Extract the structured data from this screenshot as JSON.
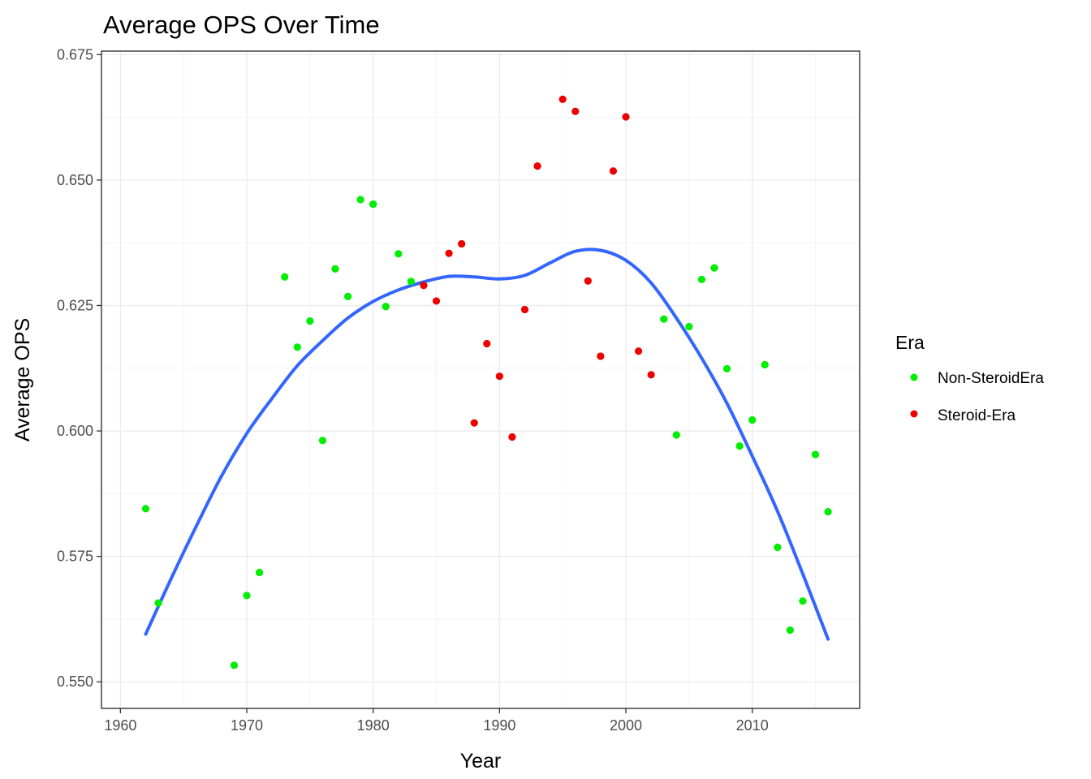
{
  "chart_data": {
    "type": "scatter",
    "title": "Average OPS Over Time",
    "xlabel": "Year",
    "ylabel": "Average OPS",
    "xlim": [
      1958.5,
      2018.5
    ],
    "ylim": [
      0.5447,
      0.6757
    ],
    "x_ticks": [
      1960,
      1970,
      1980,
      1990,
      2000,
      2010
    ],
    "y_ticks": [
      0.55,
      0.575,
      0.6,
      0.625,
      0.65,
      0.675
    ],
    "x_tick_labels": [
      "1960",
      "1970",
      "1980",
      "1990",
      "2000",
      "2010"
    ],
    "y_tick_labels": [
      "0.550",
      "0.575",
      "0.600",
      "0.625",
      "0.650",
      "0.675"
    ],
    "grid": true,
    "legend": {
      "title": "Era",
      "position": "right",
      "entries": [
        {
          "label": "Non-SteroidEra",
          "color": "#00ee00"
        },
        {
          "label": "Steroid-Era",
          "color": "#ee0000"
        }
      ]
    },
    "series": [
      {
        "name": "Non-SteroidEra",
        "color": "#00ee00",
        "points": [
          [
            1962,
            0.5845
          ],
          [
            1963,
            0.5657
          ],
          [
            1969,
            0.5533
          ],
          [
            1970,
            0.5672
          ],
          [
            1971,
            0.5718
          ],
          [
            1973,
            0.6307
          ],
          [
            1974,
            0.6167
          ],
          [
            1975,
            0.6219
          ],
          [
            1976,
            0.5981
          ],
          [
            1977,
            0.6323
          ],
          [
            1978,
            0.6268
          ],
          [
            1979,
            0.6461
          ],
          [
            1980,
            0.6452
          ],
          [
            1981,
            0.6248
          ],
          [
            1982,
            0.6353
          ],
          [
            1983,
            0.6298
          ],
          [
            2003,
            0.6223
          ],
          [
            2004,
            0.5992
          ],
          [
            2005,
            0.6208
          ],
          [
            2006,
            0.6302
          ],
          [
            2007,
            0.6325
          ],
          [
            2008,
            0.6124
          ],
          [
            2009,
            0.597
          ],
          [
            2010,
            0.6022
          ],
          [
            2011,
            0.6132
          ],
          [
            2012,
            0.5768
          ],
          [
            2013,
            0.5603
          ],
          [
            2014,
            0.5661
          ],
          [
            2015,
            0.5953
          ],
          [
            2016,
            0.5839
          ]
        ]
      },
      {
        "name": "Steroid-Era",
        "color": "#ee0000",
        "points": [
          [
            1984,
            0.629
          ],
          [
            1985,
            0.6259
          ],
          [
            1986,
            0.6354
          ],
          [
            1987,
            0.6373
          ],
          [
            1988,
            0.6016
          ],
          [
            1989,
            0.6174
          ],
          [
            1990,
            0.6109
          ],
          [
            1991,
            0.5988
          ],
          [
            1992,
            0.6242
          ],
          [
            1993,
            0.6528
          ],
          [
            1995,
            0.6661
          ],
          [
            1996,
            0.6637
          ],
          [
            1997,
            0.6299
          ],
          [
            1998,
            0.6149
          ],
          [
            1999,
            0.6518
          ],
          [
            2000,
            0.6626
          ],
          [
            2001,
            0.6159
          ],
          [
            2002,
            0.6112
          ]
        ]
      }
    ],
    "smooth_line": {
      "color": "#3366ff",
      "points": [
        [
          1962,
          0.5595
        ],
        [
          1964,
          0.5705
        ],
        [
          1966,
          0.581
        ],
        [
          1968,
          0.591
        ],
        [
          1970,
          0.5995
        ],
        [
          1972,
          0.6065
        ],
        [
          1974,
          0.613
        ],
        [
          1976,
          0.618
        ],
        [
          1978,
          0.6225
        ],
        [
          1980,
          0.6258
        ],
        [
          1982,
          0.6281
        ],
        [
          1984,
          0.6297
        ],
        [
          1986,
          0.6308
        ],
        [
          1988,
          0.6307
        ],
        [
          1990,
          0.6303
        ],
        [
          1992,
          0.631
        ],
        [
          1994,
          0.6335
        ],
        [
          1996,
          0.6358
        ],
        [
          1998,
          0.636
        ],
        [
          2000,
          0.634
        ],
        [
          2002,
          0.6295
        ],
        [
          2004,
          0.6225
        ],
        [
          2006,
          0.6145
        ],
        [
          2008,
          0.6055
        ],
        [
          2010,
          0.595
        ],
        [
          2012,
          0.584
        ],
        [
          2014,
          0.5715
        ],
        [
          2016,
          0.5585
        ]
      ]
    }
  }
}
